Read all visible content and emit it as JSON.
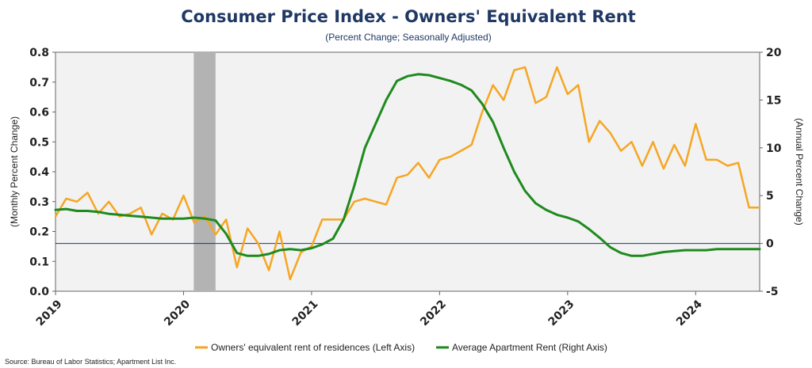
{
  "chart_data": {
    "type": "line",
    "title": "Consumer Price Index - Owners' Equivalent Rent",
    "subtitle": "(Percent Change; Seasonally Adjusted)",
    "ylabel_left": "(Monthly Percent Change)",
    "ylabel_right": "(Annual Percent Change)",
    "ylim_left": [
      0,
      0.8
    ],
    "yticks_left": [
      "0.0",
      "0.1",
      "0.2",
      "0.3",
      "0.4",
      "0.5",
      "0.6",
      "0.7",
      "0.8"
    ],
    "ylim_right": [
      -5,
      20
    ],
    "yticks_right": [
      "-5",
      "0",
      "5",
      "10",
      "15",
      "20"
    ],
    "xlim": [
      2019.0,
      2024.5
    ],
    "xticks": [
      "2019",
      "2020",
      "2021",
      "2022",
      "2023",
      "2024"
    ],
    "grid": false,
    "legend_position": "bottom",
    "recession_band": [
      2020.08,
      2020.25
    ],
    "reference_line_right": 0,
    "series": [
      {
        "name": "Owners' equivalent rent of residences (Left Axis)",
        "axis": "left",
        "color": "#f5a623",
        "x": [
          2019.0,
          2019.083,
          2019.167,
          2019.25,
          2019.333,
          2019.417,
          2019.5,
          2019.583,
          2019.667,
          2019.75,
          2019.833,
          2019.917,
          2020.0,
          2020.083,
          2020.167,
          2020.25,
          2020.333,
          2020.417,
          2020.5,
          2020.583,
          2020.667,
          2020.75,
          2020.833,
          2020.917,
          2021.0,
          2021.083,
          2021.167,
          2021.25,
          2021.333,
          2021.417,
          2021.5,
          2021.583,
          2021.667,
          2021.75,
          2021.833,
          2021.917,
          2022.0,
          2022.083,
          2022.167,
          2022.25,
          2022.333,
          2022.417,
          2022.5,
          2022.583,
          2022.667,
          2022.75,
          2022.833,
          2022.917,
          2023.0,
          2023.083,
          2023.167,
          2023.25,
          2023.333,
          2023.417,
          2023.5,
          2023.583,
          2023.667,
          2023.75,
          2023.833,
          2023.917,
          2024.0,
          2024.083,
          2024.167,
          2024.25,
          2024.333,
          2024.417,
          2024.5
        ],
        "values": [
          0.25,
          0.31,
          0.3,
          0.33,
          0.26,
          0.3,
          0.25,
          0.26,
          0.28,
          0.19,
          0.26,
          0.24,
          0.32,
          0.23,
          0.25,
          0.19,
          0.24,
          0.08,
          0.21,
          0.16,
          0.07,
          0.2,
          0.04,
          0.13,
          0.15,
          0.24,
          0.24,
          0.24,
          0.3,
          0.31,
          0.3,
          0.29,
          0.38,
          0.39,
          0.43,
          0.38,
          0.44,
          0.45,
          0.47,
          0.49,
          0.6,
          0.69,
          0.64,
          0.74,
          0.75,
          0.63,
          0.65,
          0.75,
          0.66,
          0.69,
          0.5,
          0.57,
          0.53,
          0.47,
          0.5,
          0.42,
          0.5,
          0.41,
          0.49,
          0.42,
          0.56,
          0.44,
          0.44,
          0.42,
          0.43,
          0.28,
          0.28
        ]
      },
      {
        "name": "Average Apartment Rent (Right Axis)",
        "axis": "right",
        "color": "#1e8a1e",
        "x": [
          2019.0,
          2019.083,
          2019.167,
          2019.25,
          2019.333,
          2019.417,
          2019.5,
          2019.583,
          2019.667,
          2019.75,
          2019.833,
          2019.917,
          2020.0,
          2020.083,
          2020.167,
          2020.25,
          2020.333,
          2020.417,
          2020.5,
          2020.583,
          2020.667,
          2020.75,
          2020.833,
          2020.917,
          2021.0,
          2021.083,
          2021.167,
          2021.25,
          2021.333,
          2021.417,
          2021.5,
          2021.583,
          2021.667,
          2021.75,
          2021.833,
          2021.917,
          2022.0,
          2022.083,
          2022.167,
          2022.25,
          2022.333,
          2022.417,
          2022.5,
          2022.583,
          2022.667,
          2022.75,
          2022.833,
          2022.917,
          2023.0,
          2023.083,
          2023.167,
          2023.25,
          2023.333,
          2023.417,
          2023.5,
          2023.583,
          2023.667,
          2023.75,
          2023.833,
          2023.917,
          2024.0,
          2024.083,
          2024.167,
          2024.25,
          2024.333,
          2024.417,
          2024.5
        ],
        "values": [
          3.5,
          3.6,
          3.4,
          3.4,
          3.3,
          3.1,
          3.0,
          2.9,
          2.8,
          2.7,
          2.6,
          2.6,
          2.6,
          2.7,
          2.6,
          2.4,
          1.0,
          -1.0,
          -1.3,
          -1.3,
          -1.1,
          -0.7,
          -0.6,
          -0.7,
          -0.5,
          -0.1,
          0.5,
          2.5,
          6.0,
          10.0,
          12.5,
          15.0,
          17.0,
          17.5,
          17.7,
          17.6,
          17.3,
          17.0,
          16.6,
          16.0,
          14.6,
          12.7,
          10.0,
          7.5,
          5.5,
          4.2,
          3.5,
          3.0,
          2.7,
          2.3,
          1.5,
          0.6,
          -0.4,
          -1.0,
          -1.3,
          -1.3,
          -1.1,
          -0.9,
          -0.8,
          -0.7,
          -0.7,
          -0.7,
          -0.6,
          -0.6,
          -0.6,
          -0.6,
          -0.6
        ]
      }
    ]
  },
  "source": "Source: Bureau of Labor Statistics; Apartment List Inc."
}
